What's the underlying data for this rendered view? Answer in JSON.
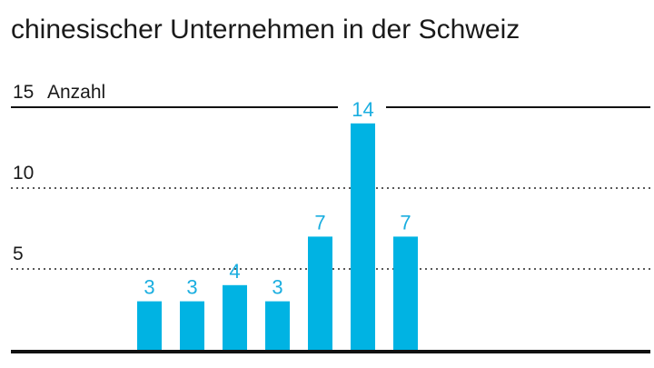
{
  "title": {
    "line1": "",
    "line2": "chinesischer Unternehmen in der Schweiz"
  },
  "chart_data": {
    "type": "bar",
    "title": "chinesischer Unternehmen in der Schweiz",
    "ylabel": "Anzahl",
    "xlabel": "",
    "categories": [
      "",
      "",
      "",
      "",
      "",
      "",
      ""
    ],
    "values": [
      3,
      3,
      4,
      3,
      7,
      14,
      7
    ],
    "ylim": [
      0,
      15
    ],
    "yticks": [
      5,
      10,
      15
    ],
    "ytick_labels": [
      "5",
      "10",
      "15"
    ],
    "grid": true,
    "bar_color": "#00b3e3",
    "label_color": "#1aaee0"
  }
}
